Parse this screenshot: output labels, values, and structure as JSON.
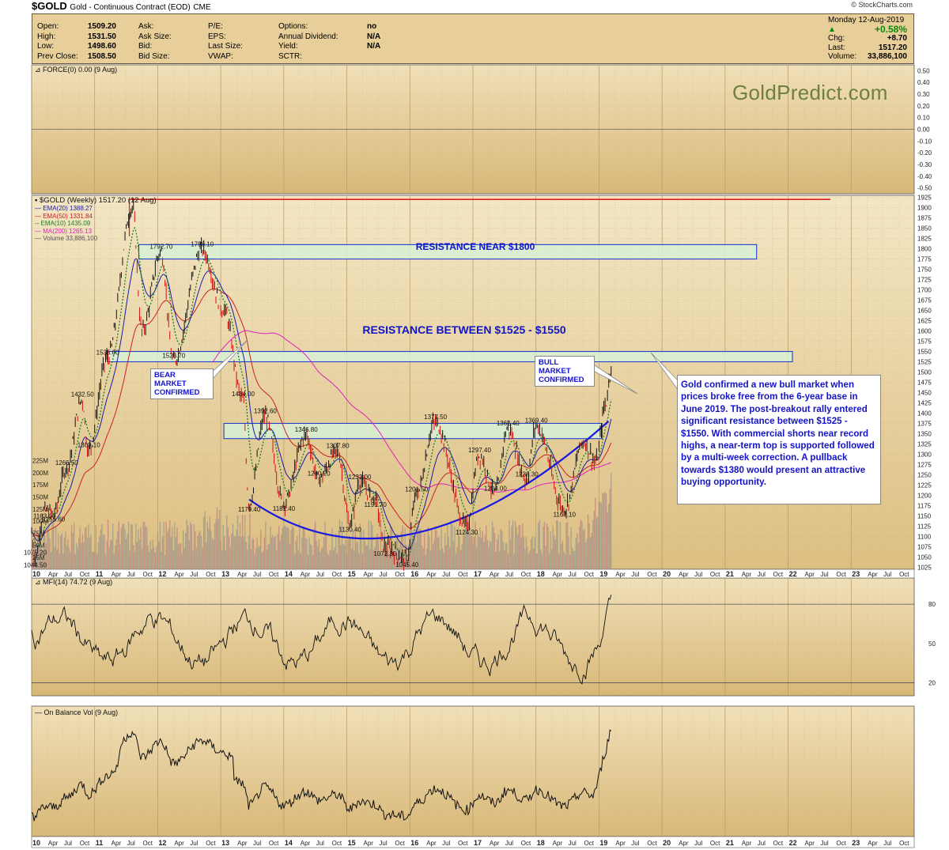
{
  "header": {
    "symbol": "$GOLD",
    "name": "Gold - Continuous Contract (EOD)",
    "exchange": "CME",
    "credit": "© StockCharts.com"
  },
  "info": {
    "col1": [
      {
        "label": "Open:",
        "value": "1509.20"
      },
      {
        "label": "High:",
        "value": "1531.50"
      },
      {
        "label": "Low:",
        "value": "1498.60"
      },
      {
        "label": "Prev Close:",
        "value": "1508.50"
      }
    ],
    "col2": [
      "Ask:",
      "Ask Size:",
      "Bid:",
      "Bid Size:"
    ],
    "col3": [
      "P/E:",
      "EPS:",
      "Last Size:",
      "VWAP:"
    ],
    "col4": [
      {
        "label": "Options:",
        "value": "no"
      },
      {
        "label": "Annual Dividend:",
        "value": "N/A"
      },
      {
        "label": "Yield:",
        "value": "N/A"
      },
      {
        "label": "SCTR:",
        "value": ""
      }
    ],
    "quote": {
      "date": "Monday 12-Aug-2019",
      "pct": "+0.58%",
      "chg_label": "Chg:",
      "chg": "+8.70",
      "last_label": "Last:",
      "last": "1517.20",
      "vol_label": "Volume:",
      "vol": "33,886,100"
    }
  },
  "watermark": "GoldPredict.com",
  "panels": {
    "force_label": "FORCE(0) 0.00 (9 Aug)",
    "main_label": "$GOLD (Weekly) 1517.20 (12 Aug)",
    "legend": [
      {
        "text": "EMA(20) 1388.27",
        "color": "#1a1aa8",
        "dash": false
      },
      {
        "text": "EMA(50) 1331.84",
        "color": "#cc2020",
        "dash": false
      },
      {
        "text": "EMA(10) 1435.09",
        "color": "#208020",
        "dash": true
      },
      {
        "text": "MA(200) 1265.13",
        "color": "#e020c0",
        "dash": false
      },
      {
        "text": "Volume 33,886,100",
        "color": "#888888",
        "dash": false
      }
    ],
    "mfi_label": "MFI(14) 74.72 (9 Aug)",
    "obv_label": "On Balance Vol (9 Aug)"
  },
  "annotations": {
    "res1800": "RESISTANCE NEAR $1800",
    "res1525": "RESISTANCE BETWEEN $1525 - $1550",
    "bear": [
      "BEAR MARKET",
      "CONFIRMED"
    ],
    "bull": [
      "BULL MARKET",
      "CONFIRMED"
    ],
    "comment": "Gold confirmed a new bull market when prices broke free from the 6-year base in June 2019. The post-breakout rally entered significant resistance between $1525 - $1550. With commercial shorts near record highs, a near-term top is supported followed by a multi-week correction. A pullback towards $1380 would present an attractive buying opportunity."
  },
  "chart_data": [
    {
      "type": "line",
      "name": "FORCE(0)",
      "yticks": [
        0.5,
        0.4,
        0.3,
        0.2,
        0.1,
        0.0,
        -0.1,
        -0.2,
        -0.3,
        -0.4,
        -0.5
      ],
      "ytick_labels": [
        "0.50",
        "0.40",
        "0.30",
        "0.20",
        "0.10",
        "0.00",
        "-0.10",
        "-0.20",
        "-0.30",
        "-0.40",
        "-0.50"
      ],
      "ylim": [
        -0.55,
        0.55
      ],
      "values": [
        0.0
      ]
    },
    {
      "type": "line",
      "name": "$GOLD (Weekly)",
      "x_tick_labels": [
        "10",
        "Apr",
        "Jul",
        "Oct",
        "11",
        "Apr",
        "Jul",
        "Oct",
        "12",
        "Apr",
        "Jul",
        "Oct",
        "13",
        "Apr",
        "Jul",
        "Oct",
        "14",
        "Apr",
        "Jul",
        "Oct",
        "15",
        "Apr",
        "Jul",
        "Oct",
        "16",
        "Apr",
        "Jul",
        "Oct",
        "17",
        "Apr",
        "Jul",
        "Oct",
        "18",
        "Apr",
        "Jul",
        "Oct",
        "19",
        "Apr",
        "Jul",
        "Oct",
        "20",
        "Apr",
        "Jul",
        "Oct",
        "21",
        "Apr",
        "Jul",
        "Oct",
        "22",
        "Apr",
        "Jul",
        "Oct",
        "23",
        "Apr",
        "Jul",
        "Oct"
      ],
      "ylim": [
        1020,
        1930
      ],
      "yticks": [
        1925,
        1900,
        1875,
        1850,
        1825,
        1800,
        1775,
        1750,
        1725,
        1700,
        1675,
        1650,
        1625,
        1600,
        1575,
        1550,
        1525,
        1500,
        1475,
        1450,
        1425,
        1400,
        1375,
        1350,
        1325,
        1300,
        1275,
        1250,
        1225,
        1200,
        1175,
        1150,
        1125,
        1100,
        1075,
        1050,
        1025
      ],
      "volume_ticks": [
        "225M",
        "200M",
        "175M",
        "150M",
        "125M",
        "100M",
        "75M",
        "50M",
        "25M"
      ],
      "price_anchors": [
        {
          "t": 0.0,
          "v": 1110
        },
        {
          "t": 0.05,
          "v": 1044.5
        },
        {
          "t": 0.2,
          "v": 1163
        },
        {
          "t": 0.35,
          "v": 1155.6
        },
        {
          "t": 0.55,
          "v": 1266.5
        },
        {
          "t": 0.8,
          "v": 1432.5
        },
        {
          "t": 0.9,
          "v": 1309.1
        },
        {
          "t": 1.2,
          "v": 1535
        },
        {
          "t": 1.6,
          "v": 1900
        },
        {
          "t": 1.75,
          "v": 1600
        },
        {
          "t": 2.05,
          "v": 1792.7
        },
        {
          "t": 2.25,
          "v": 1526.7
        },
        {
          "t": 2.7,
          "v": 1798.1
        },
        {
          "t": 3.05,
          "v": 1650
        },
        {
          "t": 3.35,
          "v": 1434
        },
        {
          "t": 3.45,
          "v": 1179.4
        },
        {
          "t": 3.7,
          "v": 1392.6
        },
        {
          "t": 4.0,
          "v": 1181.4
        },
        {
          "t": 4.35,
          "v": 1346.8
        },
        {
          "t": 4.55,
          "v": 1240.2
        },
        {
          "t": 4.85,
          "v": 1307.8
        },
        {
          "t": 5.05,
          "v": 1130.4
        },
        {
          "t": 5.2,
          "v": 1232
        },
        {
          "t": 5.45,
          "v": 1191.7
        },
        {
          "t": 5.6,
          "v": 1072.3
        },
        {
          "t": 5.95,
          "v": 1045.4
        },
        {
          "t": 6.1,
          "v": 1201.5
        },
        {
          "t": 6.4,
          "v": 1377.5
        },
        {
          "t": 6.9,
          "v": 1124.3
        },
        {
          "t": 7.1,
          "v": 1297.4
        },
        {
          "t": 7.35,
          "v": 1204
        },
        {
          "t": 7.55,
          "v": 1362.4
        },
        {
          "t": 7.85,
          "v": 1238.3
        },
        {
          "t": 8.0,
          "v": 1369.4
        },
        {
          "t": 8.45,
          "v": 1167.1
        },
        {
          "t": 8.75,
          "v": 1330
        },
        {
          "t": 8.95,
          "v": 1280
        },
        {
          "t": 9.1,
          "v": 1420
        },
        {
          "t": 9.2,
          "v": 1517.2
        }
      ],
      "price_labels": [
        {
          "text": "1044.50",
          "t": 0.05,
          "v": 1044.5
        },
        {
          "text": "1075.20",
          "t": 0.05,
          "v": 1075.2
        },
        {
          "text": "1163.00",
          "t": 0.2,
          "v": 1163
        },
        {
          "text": "1155.60",
          "t": 0.35,
          "v": 1155.6
        },
        {
          "text": "1266.50",
          "t": 0.55,
          "v": 1266.5
        },
        {
          "text": "1432.50",
          "t": 0.8,
          "v": 1432.5
        },
        {
          "text": "1309.10",
          "t": 0.9,
          "v": 1309.1
        },
        {
          "text": "1535.00",
          "t": 1.2,
          "v": 1535
        },
        {
          "text": "1792.70",
          "t": 2.05,
          "v": 1792.7
        },
        {
          "text": "1526.70",
          "t": 2.25,
          "v": 1526.7
        },
        {
          "text": "1798.10",
          "t": 2.7,
          "v": 1798.1
        },
        {
          "text": "1434.00",
          "t": 3.35,
          "v": 1434
        },
        {
          "text": "1179.40",
          "t": 3.45,
          "v": 1179.4
        },
        {
          "text": "1392.60",
          "t": 3.7,
          "v": 1392.6
        },
        {
          "text": "1181.40",
          "t": 4.0,
          "v": 1181.4
        },
        {
          "text": "1346.80",
          "t": 4.35,
          "v": 1346.8
        },
        {
          "text": "1240.20",
          "t": 4.55,
          "v": 1240.2
        },
        {
          "text": "1307.80",
          "t": 4.85,
          "v": 1307.8
        },
        {
          "text": "1130.40",
          "t": 5.05,
          "v": 1130.4
        },
        {
          "text": "1232.00",
          "t": 5.2,
          "v": 1232
        },
        {
          "text": "1191.70",
          "t": 5.45,
          "v": 1191.7
        },
        {
          "text": "1072.30",
          "t": 5.6,
          "v": 1072.3
        },
        {
          "text": "1045.40",
          "t": 5.95,
          "v": 1045.4
        },
        {
          "text": "1201.50",
          "t": 6.1,
          "v": 1201.5
        },
        {
          "text": "1377.50",
          "t": 6.4,
          "v": 1377.5
        },
        {
          "text": "1124.30",
          "t": 6.9,
          "v": 1124.3
        },
        {
          "text": "1297.40",
          "t": 7.1,
          "v": 1297.4
        },
        {
          "text": "1204.00",
          "t": 7.35,
          "v": 1204
        },
        {
          "text": "1362.40",
          "t": 7.55,
          "v": 1362.4
        },
        {
          "text": "1238.30",
          "t": 7.85,
          "v": 1238.3
        },
        {
          "text": "1369.40",
          "t": 8.0,
          "v": 1369.4
        },
        {
          "text": "1167.10",
          "t": 8.45,
          "v": 1167.1
        }
      ],
      "resistance_line": 1920,
      "zones": [
        {
          "low": 1775,
          "high": 1810,
          "t0": 1.7,
          "t1": 11.5
        },
        {
          "low": 1525,
          "high": 1550,
          "t0": 1.2,
          "t1": 11.5
        },
        {
          "low": 1338,
          "high": 1375,
          "t0": 3.05,
          "t1": 9.05
        }
      ]
    },
    {
      "type": "line",
      "name": "MFI(14)",
      "yticks": [
        80,
        50,
        20
      ],
      "ylim": [
        10,
        100
      ],
      "x_range": [
        0,
        9.2
      ]
    },
    {
      "type": "line",
      "name": "On Balance Vol",
      "x_range": [
        0,
        9.2
      ]
    }
  ]
}
